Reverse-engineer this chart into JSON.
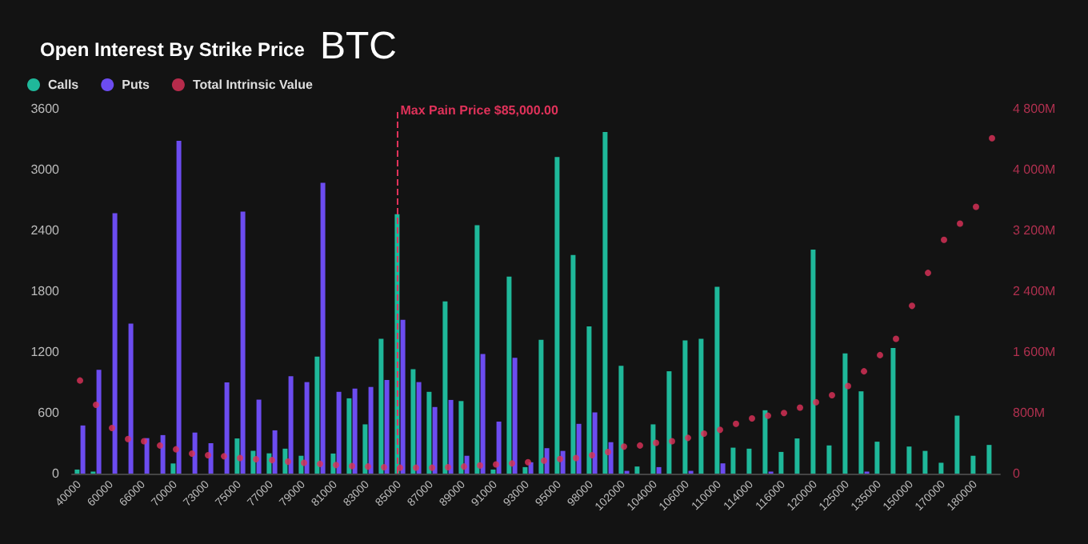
{
  "chart_data": {
    "type": "bar",
    "title": "Open Interest By Strike Price",
    "subtitle": "BTC",
    "categories": [
      "40000",
      null,
      "60000",
      null,
      "66000",
      null,
      "70000",
      null,
      "73000",
      null,
      "75000",
      null,
      "77000",
      null,
      "79000",
      null,
      "81000",
      null,
      "83000",
      null,
      "85000",
      null,
      "87000",
      null,
      "89000",
      null,
      "91000",
      null,
      "93000",
      null,
      "95000",
      null,
      "98000",
      null,
      "102000",
      null,
      "104000",
      null,
      "106000",
      null,
      "110000",
      null,
      "114000",
      null,
      "116000",
      null,
      "120000",
      null,
      "125000",
      null,
      "135000",
      null,
      "150000",
      null,
      "170000",
      null,
      "180000",
      null
    ],
    "series": [
      {
        "name": "Calls",
        "color": "#1fb89a",
        "values": [
          40,
          20,
          0,
          0,
          0,
          0,
          100,
          0,
          0,
          0,
          347,
          225,
          200,
          246,
          176,
          1154,
          198,
          743,
          486,
          1330,
          2559,
          1031,
          807,
          1699,
          716,
          2452,
          40,
          1944,
          64,
          1320,
          3125,
          2158,
          1453,
          3371,
          1063,
          70,
          486,
          1010,
          1314,
          1330,
          1843,
          256,
          246,
          625,
          214,
          347,
          2211,
          278,
          1186,
          812,
          315,
          1239,
          267,
          224,
          107,
          572,
          176,
          283
        ]
      },
      {
        "name": "Puts",
        "color": "#6c4cf0",
        "values": [
          475,
          1025,
          2570,
          1480,
          350,
          380,
          3285,
          405,
          300,
          900,
          2585,
          730,
          427,
          961,
          903,
          2870,
          807,
          839,
          855,
          924,
          1517,
          903,
          657,
          727,
          176,
          1181,
          513,
          1143,
          112,
          251,
          224,
          491,
          604,
          310,
          27,
          0,
          64,
          0,
          27,
          0,
          101,
          0,
          0,
          20,
          0,
          0,
          0,
          0,
          0,
          20,
          0,
          0,
          0,
          0,
          0,
          0,
          0,
          0
        ]
      },
      {
        "name": "Total Intrinsic Value",
        "type": "scatter",
        "axis": "y2",
        "color": "#e0325a",
        "values": [
          1225,
          905,
          600,
          455,
          427,
          370,
          320,
          263,
          242,
          228,
          206,
          190,
          178,
          157,
          142,
          128,
          114,
          100,
          93,
          85,
          78,
          78,
          78,
          85,
          93,
          107,
          121,
          135,
          150,
          171,
          192,
          206,
          242,
          285,
          356,
          370,
          406,
          427,
          470,
          527,
          577,
          655,
          726,
          762,
          797,
          869,
          940,
          1032,
          1153,
          1346,
          1559,
          1773,
          2207,
          2641,
          3076,
          3289,
          3510,
          4414
        ]
      }
    ],
    "ylim": [
      0,
      3600
    ],
    "yticks": [
      0,
      600,
      1200,
      1800,
      2400,
      3000,
      3600
    ],
    "y2lim": [
      0,
      4800
    ],
    "y2ticks": [
      0,
      {
        "value": 800,
        "label": "800M"
      },
      {
        "value": 1600,
        "label": "1 600M"
      },
      {
        "value": 2400,
        "label": "2 400M"
      },
      {
        "value": 3200,
        "label": "3 200M"
      },
      {
        "value": 4000,
        "label": "4 000M"
      },
      {
        "value": 4800,
        "label": "4 800M"
      }
    ],
    "ref_lines": [
      {
        "axis": "x",
        "value": "85000",
        "label": "Max Pain Price $85,000.00",
        "color": "#e0325a",
        "line_style": "dashed"
      }
    ],
    "legend": "top left",
    "marker": "circle"
  }
}
